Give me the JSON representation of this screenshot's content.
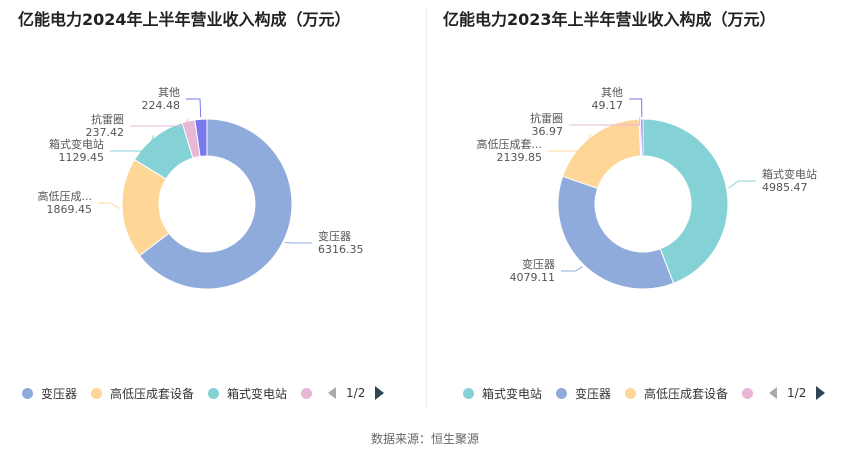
{
  "source": "数据来源：恒生聚源",
  "chart_data": [
    {
      "type": "pie",
      "title": "亿能电力2024年上半年营业收入构成（万元）",
      "slices": [
        {
          "name": "变压器",
          "label": "变压器",
          "value": 6316.35,
          "value_text": "6316.35",
          "color": "#8fabdb"
        },
        {
          "name": "高低压成套设备",
          "label": "高低压成...",
          "value": 1869.45,
          "value_text": "1869.45",
          "color": "#fdd698"
        },
        {
          "name": "箱式变电站",
          "label": "箱式变电站",
          "value": 1129.45,
          "value_text": "1129.45",
          "color": "#85d2d6"
        },
        {
          "name": "抗雷圈",
          "label": "抗雷圈",
          "value": 237.42,
          "value_text": "237.42",
          "color": "#e8b7d5"
        },
        {
          "name": "其他",
          "label": "其他",
          "value": 224.48,
          "value_text": "224.48",
          "color": "#7779ec"
        }
      ],
      "legend": {
        "items": [
          "变压器",
          "高低压成套设备",
          "箱式变电站"
        ],
        "colors": [
          "#8fabdb",
          "#fdd698",
          "#85d2d6",
          "#e8b7d5"
        ],
        "page": "1/2"
      }
    },
    {
      "type": "pie",
      "title": "亿能电力2023年上半年营业收入构成（万元）",
      "slices": [
        {
          "name": "箱式变电站",
          "label": "箱式变电站",
          "value": 4985.47,
          "value_text": "4985.47",
          "color": "#85d2d6"
        },
        {
          "name": "变压器",
          "label": "变压器",
          "value": 4079.11,
          "value_text": "4079.11",
          "color": "#8fabdb"
        },
        {
          "name": "高低压成套设备",
          "label": "高低压成套...",
          "value": 2139.85,
          "value_text": "2139.85",
          "color": "#fdd698"
        },
        {
          "name": "抗雷圈",
          "label": "抗雷圈",
          "value": 36.97,
          "value_text": "36.97",
          "color": "#e8b7d5"
        },
        {
          "name": "其他",
          "label": "其他",
          "value": 49.17,
          "value_text": "49.17",
          "color": "#7779ec"
        }
      ],
      "legend": {
        "items": [
          "箱式变电站",
          "变压器",
          "高低压成套设备"
        ],
        "colors": [
          "#85d2d6",
          "#8fabdb",
          "#fdd698",
          "#e8b7d5"
        ],
        "page": "1/2"
      }
    }
  ]
}
